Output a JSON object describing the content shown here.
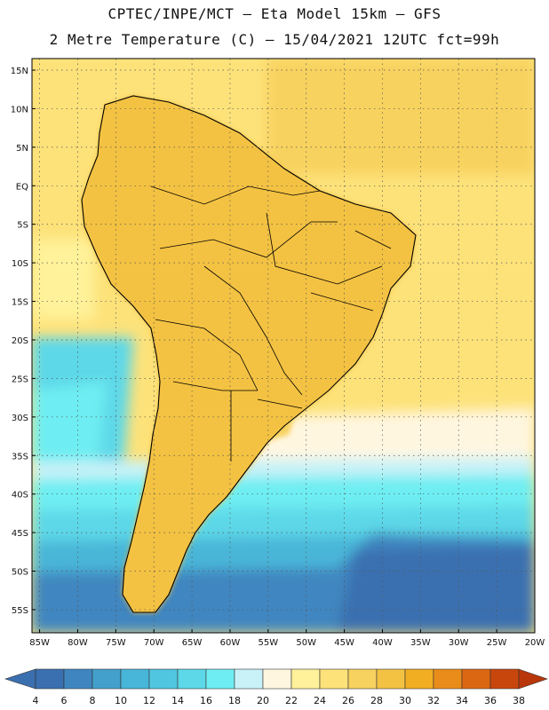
{
  "header": {
    "title_line1": "CPTEC/INPE/MCT –  Eta Model 15km – GFS",
    "title_line2": "2 Metre Temperature (C) – 15/04/2021 12UTC fct=99h"
  },
  "axes": {
    "lat_labels": [
      "15N",
      "10N",
      "5N",
      "EQ",
      "5S",
      "10S",
      "15S",
      "20S",
      "25S",
      "30S",
      "35S",
      "40S",
      "45S",
      "50S",
      "55S"
    ],
    "lat_values": [
      15,
      10,
      5,
      0,
      -5,
      -10,
      -15,
      -20,
      -25,
      -30,
      -35,
      -40,
      -45,
      -50,
      -55
    ],
    "lon_labels": [
      "85W",
      "80W",
      "75W",
      "70W",
      "65W",
      "60W",
      "55W",
      "50W",
      "45W",
      "40W",
      "35W",
      "30W",
      "25W",
      "20W"
    ],
    "lon_values": [
      -85,
      -80,
      -75,
      -70,
      -65,
      -60,
      -55,
      -50,
      -45,
      -40,
      -35,
      -30,
      -25,
      -20
    ],
    "lat_range": [
      -58,
      16.5
    ],
    "lon_range": [
      -86,
      -20
    ]
  },
  "colorbar": {
    "labels": [
      "4",
      "6",
      "8",
      "10",
      "12",
      "14",
      "16",
      "18",
      "20",
      "22",
      "24",
      "26",
      "28",
      "30",
      "32",
      "34",
      "36",
      "38"
    ],
    "colors": [
      "#3a6fb0",
      "#3f86c0",
      "#43a0cc",
      "#48b6d8",
      "#51c6e0",
      "#5dd8e8",
      "#6eeef2",
      "#c8f2f8",
      "#fff6e0",
      "#fff29a",
      "#fde27a",
      "#f8d25e",
      "#f4c242",
      "#f2ae22",
      "#ea8c1a",
      "#dc6712",
      "#c8460c",
      "#b8360a"
    ]
  }
}
